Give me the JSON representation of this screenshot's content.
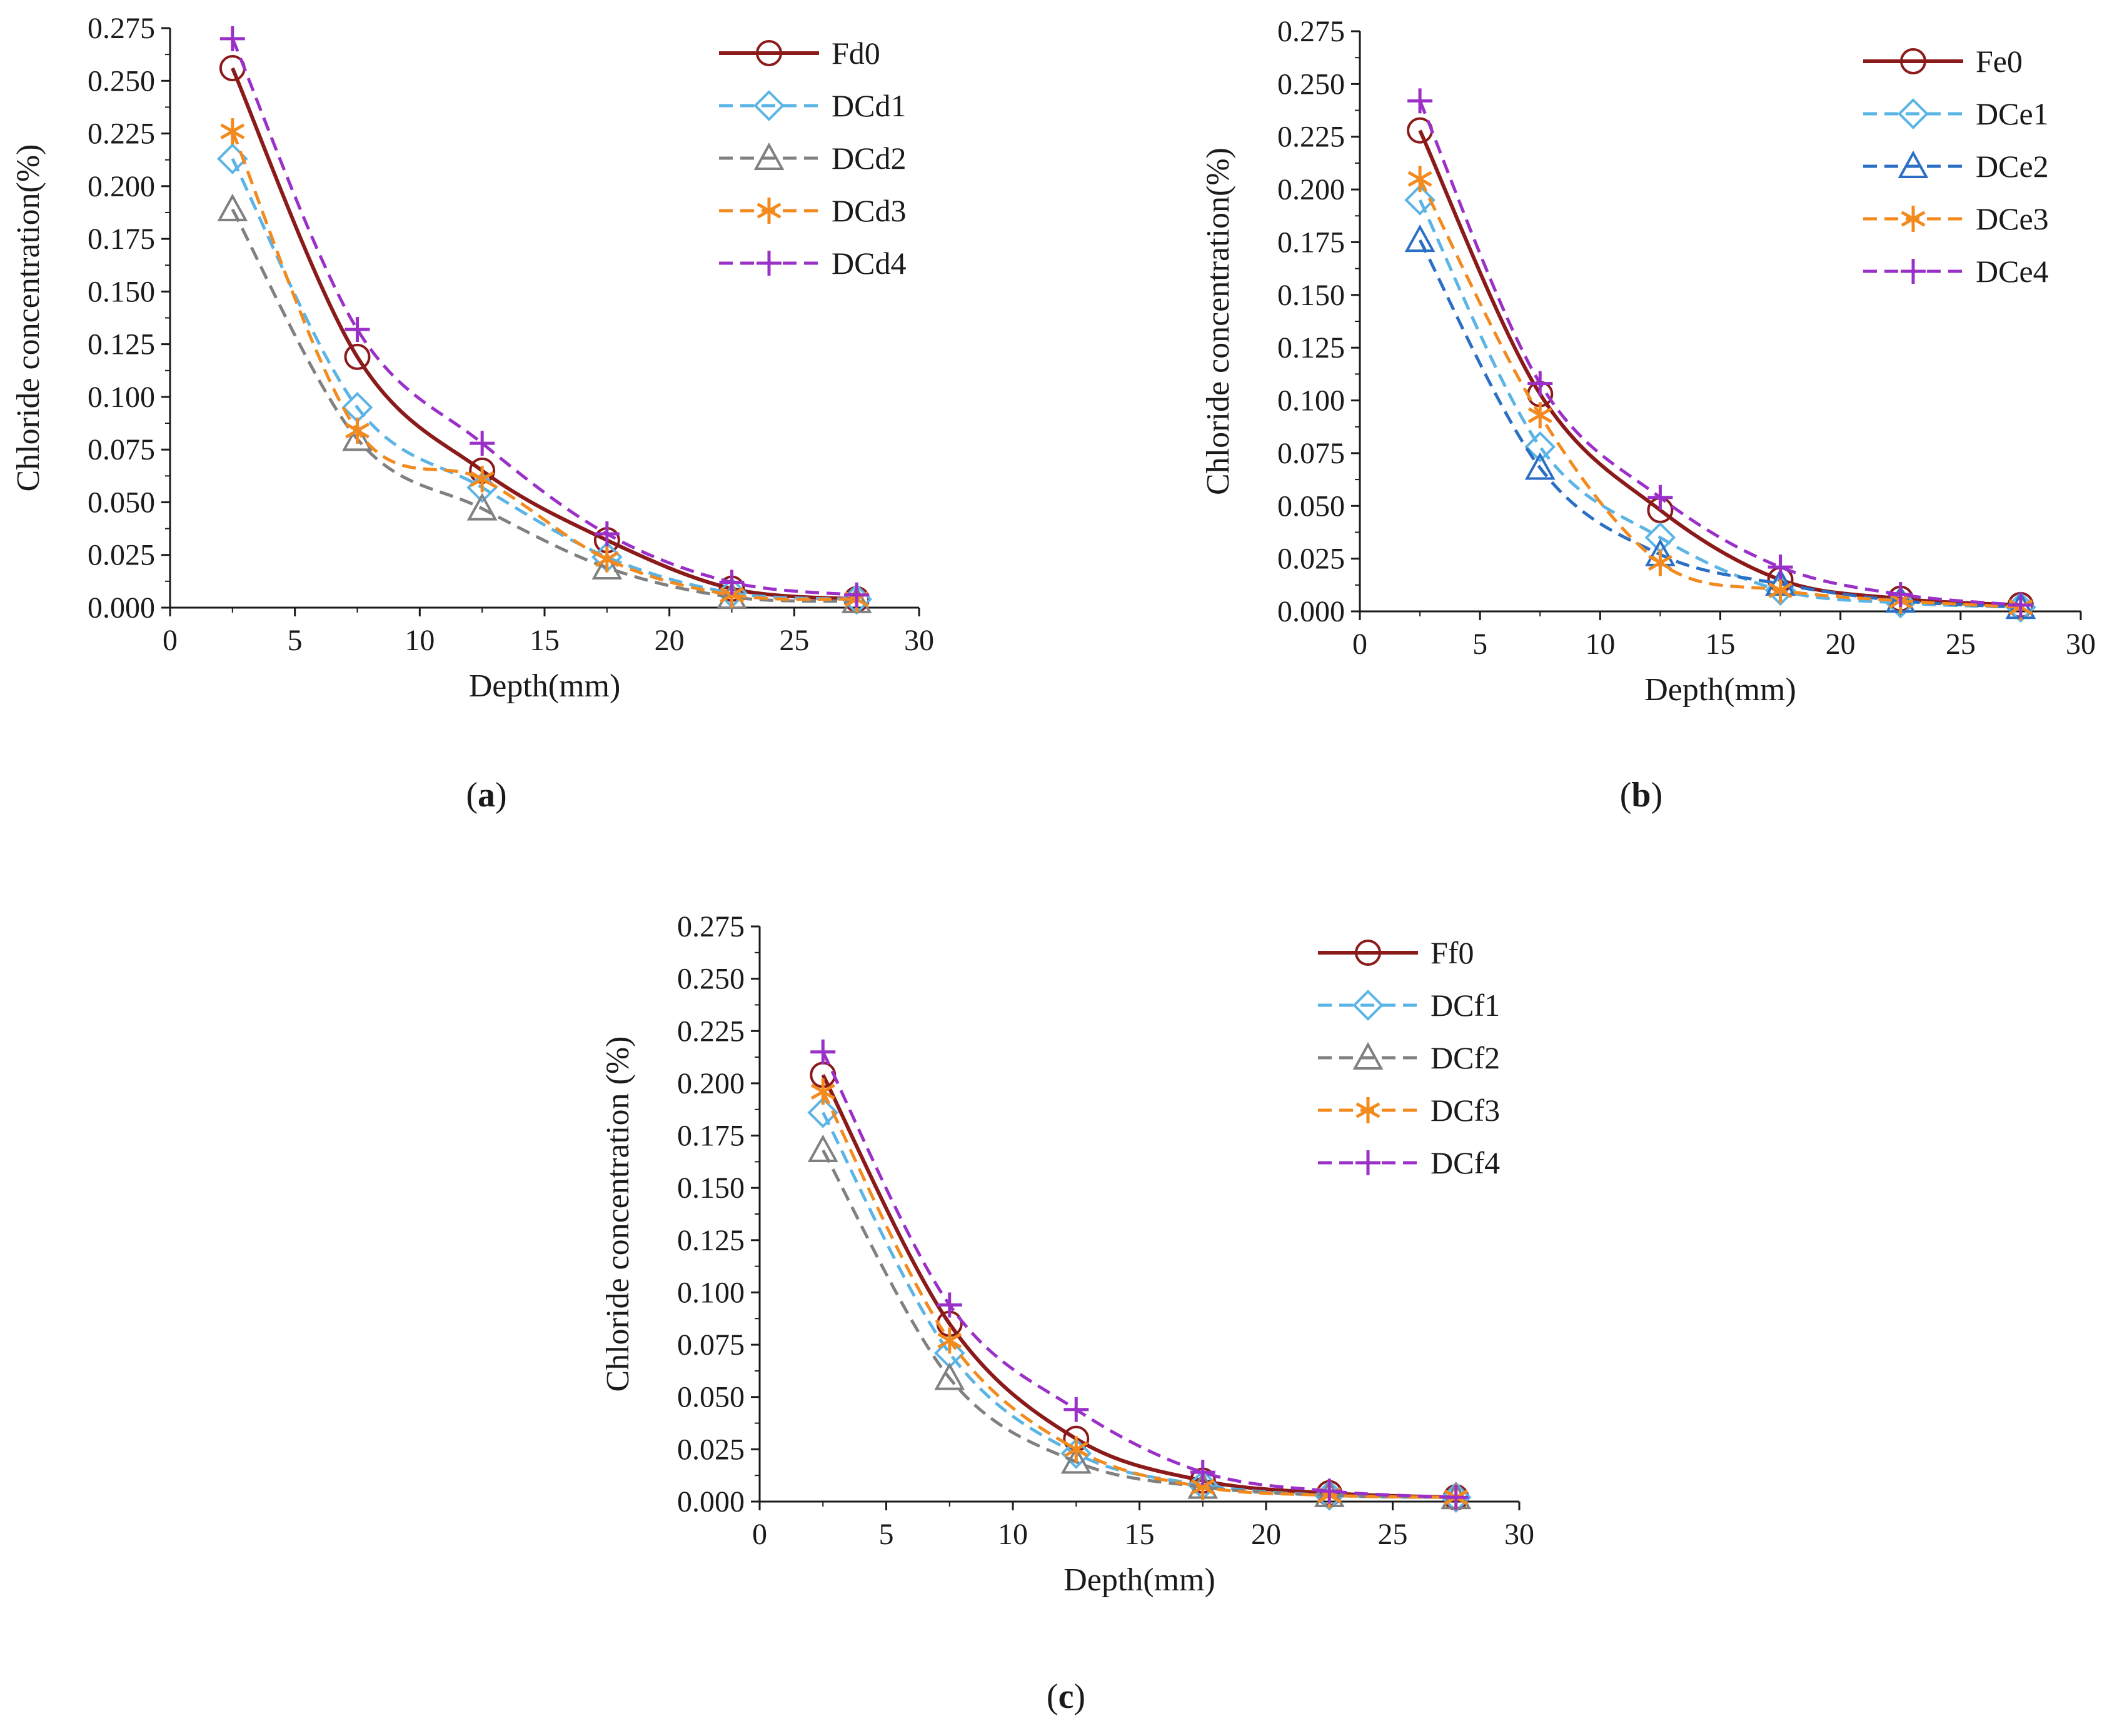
{
  "chart_data": [
    {
      "type": "line",
      "panel_label": "a",
      "xlabel": "Depth(mm)",
      "ylabel": "Chloride concentration(%)",
      "xlim": [
        0,
        30
      ],
      "ylim": [
        0,
        0.275
      ],
      "xticks": [
        "0",
        "5",
        "10",
        "15",
        "20",
        "25",
        "30"
      ],
      "yticks": [
        "0.000",
        "0.025",
        "0.050",
        "0.075",
        "0.100",
        "0.125",
        "0.150",
        "0.175",
        "0.200",
        "0.225",
        "0.250",
        "0.275"
      ],
      "legend_position": "top-right",
      "x": [
        2.5,
        7.5,
        12.5,
        17.5,
        22.5,
        27.5
      ],
      "series": [
        {
          "name": "Fd0",
          "color": "#8b1a1a",
          "line": "solid",
          "marker": "circle",
          "values": [
            0.256,
            0.119,
            0.065,
            0.032,
            0.009,
            0.004
          ]
        },
        {
          "name": "DCd1",
          "color": "#5ab4e6",
          "line": "dashed",
          "marker": "diamond",
          "values": [
            0.213,
            0.095,
            0.057,
            0.024,
            0.007,
            0.004
          ]
        },
        {
          "name": "DCd2",
          "color": "#808080",
          "line": "dashed",
          "marker": "triangle",
          "values": [
            0.189,
            0.08,
            0.047,
            0.019,
            0.005,
            0.003
          ]
        },
        {
          "name": "DCd3",
          "color": "#f28a1e",
          "line": "dashed",
          "marker": "asterisk",
          "values": [
            0.226,
            0.084,
            0.061,
            0.023,
            0.006,
            0.004
          ]
        },
        {
          "name": "DCd4",
          "color": "#9b30c8",
          "line": "dashed",
          "marker": "plus",
          "values": [
            0.27,
            0.132,
            0.078,
            0.035,
            0.012,
            0.006
          ]
        }
      ]
    },
    {
      "type": "line",
      "panel_label": "b",
      "xlabel": "Depth(mm)",
      "ylabel": "Chloride concentration(%)",
      "xlim": [
        0,
        30
      ],
      "ylim": [
        0,
        0.275
      ],
      "xticks": [
        "0",
        "5",
        "10",
        "15",
        "20",
        "25",
        "30"
      ],
      "yticks": [
        "0.000",
        "0.025",
        "0.050",
        "0.075",
        "0.100",
        "0.125",
        "0.150",
        "0.175",
        "0.200",
        "0.225",
        "0.250",
        "0.275"
      ],
      "legend_position": "top-right",
      "x": [
        2.5,
        7.5,
        12.5,
        17.5,
        22.5,
        27.5
      ],
      "series": [
        {
          "name": "Fe0",
          "color": "#8b1a1a",
          "line": "solid",
          "marker": "circle",
          "values": [
            0.228,
            0.103,
            0.048,
            0.015,
            0.006,
            0.003
          ]
        },
        {
          "name": "DCe1",
          "color": "#5ab4e6",
          "line": "dashed",
          "marker": "diamond",
          "values": [
            0.195,
            0.078,
            0.035,
            0.01,
            0.004,
            0.002
          ]
        },
        {
          "name": "DCe2",
          "color": "#2a6fc4",
          "line": "dashed",
          "marker": "triangle",
          "values": [
            0.176,
            0.068,
            0.027,
            0.013,
            0.005,
            0.002
          ]
        },
        {
          "name": "DCe3",
          "color": "#f28a1e",
          "line": "dashed",
          "marker": "asterisk",
          "values": [
            0.205,
            0.093,
            0.023,
            0.01,
            0.005,
            0.002
          ]
        },
        {
          "name": "DCe4",
          "color": "#9b30c8",
          "line": "dashed",
          "marker": "plus",
          "values": [
            0.242,
            0.108,
            0.054,
            0.021,
            0.008,
            0.003
          ]
        }
      ]
    },
    {
      "type": "line",
      "panel_label": "c",
      "xlabel": "Depth(mm)",
      "ylabel": "Chloride concentration (%)",
      "xlim": [
        0,
        30
      ],
      "ylim": [
        0,
        0.275
      ],
      "xticks": [
        "0",
        "5",
        "10",
        "15",
        "20",
        "25",
        "30"
      ],
      "yticks": [
        "0.000",
        "0.025",
        "0.050",
        "0.075",
        "0.100",
        "0.125",
        "0.150",
        "0.175",
        "0.200",
        "0.225",
        "0.250",
        "0.275"
      ],
      "legend_position": "top-right",
      "x": [
        2.5,
        7.5,
        12.5,
        17.5,
        22.5,
        27.5
      ],
      "series": [
        {
          "name": "Ff0",
          "color": "#8b1a1a",
          "line": "solid",
          "marker": "circle",
          "values": [
            0.204,
            0.085,
            0.03,
            0.01,
            0.004,
            0.002
          ]
        },
        {
          "name": "DCf1",
          "color": "#5ab4e6",
          "line": "dashed",
          "marker": "diamond",
          "values": [
            0.186,
            0.071,
            0.023,
            0.008,
            0.003,
            0.002
          ]
        },
        {
          "name": "DCf2",
          "color": "#808080",
          "line": "dashed",
          "marker": "triangle",
          "values": [
            0.168,
            0.059,
            0.019,
            0.007,
            0.003,
            0.002
          ]
        },
        {
          "name": "DCf3",
          "color": "#f28a1e",
          "line": "dashed",
          "marker": "asterisk",
          "values": [
            0.196,
            0.077,
            0.025,
            0.007,
            0.003,
            0.002
          ]
        },
        {
          "name": "DCf4",
          "color": "#9b30c8",
          "line": "dashed",
          "marker": "plus",
          "values": [
            0.215,
            0.094,
            0.044,
            0.014,
            0.005,
            0.002
          ]
        }
      ]
    }
  ]
}
